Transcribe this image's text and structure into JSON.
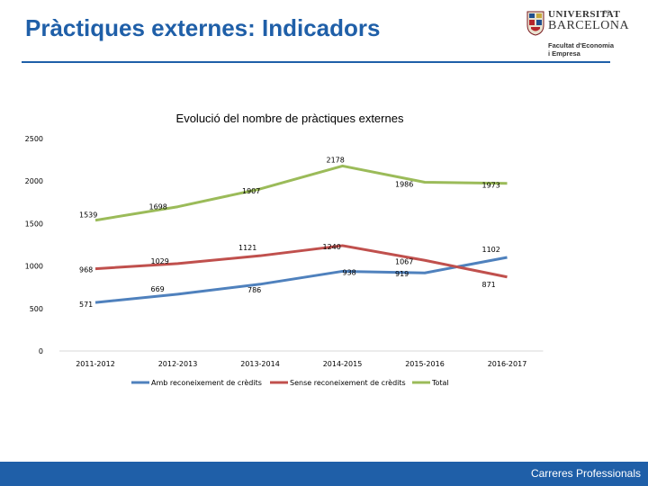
{
  "page": {
    "title": "Pràctiques externes: Indicadors",
    "footer": "Carreres Professionals"
  },
  "logo": {
    "line1": "UNIVERSITAT",
    "line1_suffix": "DE",
    "line2": "BARCELONA",
    "line3": "Facultat d'Economia",
    "line4": "i Empresa"
  },
  "colors": {
    "accent": "#1f5fa8",
    "series_amb": "#4f81bd",
    "series_sense": "#c0504d",
    "series_total": "#9bbb59"
  },
  "chart_data": {
    "type": "line",
    "title": "Evolució del nombre de pràctiques externes",
    "categories": [
      "2011-2012",
      "2012-2013",
      "2013-2014",
      "2014-2015",
      "2015-2016",
      "2016-2017"
    ],
    "yticks": [
      0,
      500,
      1000,
      1500,
      2000,
      2500
    ],
    "ylim": [
      0,
      2500
    ],
    "grid": false,
    "legend_position": "bottom",
    "series": [
      {
        "name": "Amb reconeixement de crèdits",
        "color": "#4f81bd",
        "values": [
          571,
          669,
          786,
          938,
          919,
          1102
        ],
        "labels": [
          "571",
          "669",
          "786",
          "938",
          "919",
          "1102"
        ]
      },
      {
        "name": "Sense reconeixement de crèdits",
        "color": "#c0504d",
        "values": [
          968,
          1029,
          1121,
          1240,
          1067,
          871
        ],
        "labels": [
          "968",
          "1029",
          "1121",
          "1240",
          "1067",
          "871"
        ]
      },
      {
        "name": "Total",
        "color": "#9bbb59",
        "values": [
          1539,
          1698,
          1907,
          2178,
          1986,
          1973
        ],
        "labels": [
          "1539",
          "1698",
          "1907",
          "2178",
          "1986",
          "1973"
        ]
      }
    ]
  }
}
